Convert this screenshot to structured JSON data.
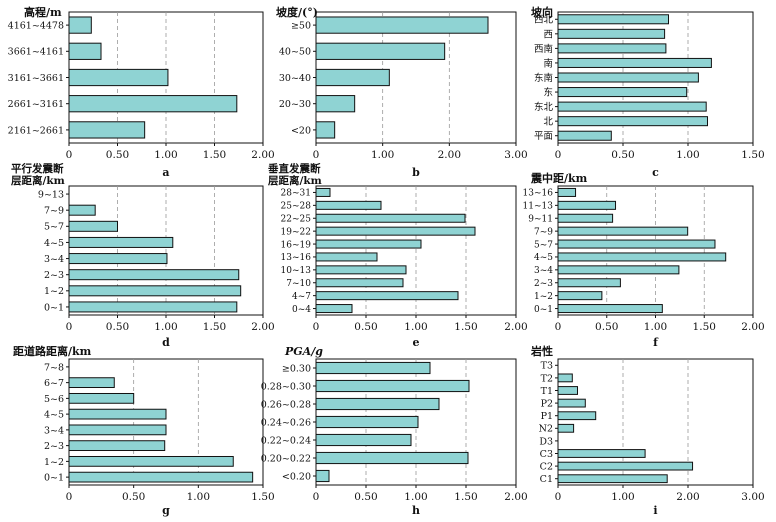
{
  "chart_data": [
    {
      "panel": "a",
      "type": "bar",
      "orientation": "horizontal",
      "title": "高程/m",
      "categories": [
        "4161~4478",
        "3661~4161",
        "3161~3661",
        "2661~3161",
        "2161~2661"
      ],
      "values": [
        0.23,
        0.33,
        1.02,
        1.73,
        0.78
      ],
      "xlim": [
        0,
        2.0
      ],
      "xticks": [
        "0",
        "0.50",
        "1.00",
        "1.50",
        "2.00"
      ],
      "grid": true
    },
    {
      "panel": "b",
      "type": "bar",
      "orientation": "horizontal",
      "title": "坡度/(°)",
      "categories": [
        "≥50",
        "40~50",
        "30~40",
        "20~30",
        "<20"
      ],
      "values": [
        2.58,
        1.93,
        1.1,
        0.58,
        0.28
      ],
      "xlim": [
        0,
        3.0
      ],
      "xticks": [
        "0",
        "1.00",
        "2.00",
        "3.00"
      ],
      "grid": true
    },
    {
      "panel": "c",
      "type": "bar",
      "orientation": "horizontal",
      "title": "坡向",
      "categories": [
        "西北",
        "西",
        "西南",
        "南",
        "东南",
        "东",
        "东北",
        "北",
        "平面"
      ],
      "values": [
        0.85,
        0.82,
        0.83,
        1.18,
        1.08,
        0.99,
        1.14,
        1.15,
        0.41
      ],
      "xlim": [
        0,
        1.5
      ],
      "xticks": [
        "0",
        "0.50",
        "1.00",
        "1.50"
      ],
      "grid": true
    },
    {
      "panel": "d",
      "type": "bar",
      "orientation": "horizontal",
      "title": "平行发震断层距离/km",
      "categories": [
        "9~13",
        "7~9",
        "5~7",
        "4~5",
        "3~4",
        "2~3",
        "1~2",
        "0~1"
      ],
      "values": [
        0,
        0.27,
        0.5,
        1.07,
        1.01,
        1.75,
        1.77,
        1.73
      ],
      "xlim": [
        0,
        2.0
      ],
      "xticks": [
        "0",
        "0.50",
        "1.00",
        "1.50",
        "2.00"
      ],
      "grid": true
    },
    {
      "panel": "e",
      "type": "bar",
      "orientation": "horizontal",
      "title": "垂直发震断层距离/km",
      "categories": [
        "28~31",
        "25~28",
        "22~25",
        "19~22",
        "16~19",
        "13~16",
        "10~13",
        "7~10",
        "4~7",
        "0~4"
      ],
      "values": [
        0.14,
        0.65,
        1.49,
        1.59,
        1.05,
        0.61,
        0.9,
        0.87,
        1.42,
        0.36
      ],
      "xlim": [
        0,
        2.0
      ],
      "xticks": [
        "0",
        "0.50",
        "1.00",
        "1.50",
        "2.00"
      ],
      "grid": true
    },
    {
      "panel": "f",
      "type": "bar",
      "orientation": "horizontal",
      "title": "震中距/km",
      "categories": [
        "13~16",
        "11~13",
        "9~11",
        "7~9",
        "5~7",
        "4~5",
        "3~4",
        "2~3",
        "1~2",
        "0~1"
      ],
      "values": [
        0.18,
        0.59,
        0.56,
        1.33,
        1.61,
        1.72,
        1.24,
        0.64,
        0.45,
        1.07
      ],
      "xlim": [
        0,
        2.0
      ],
      "xticks": [
        "0",
        "0.50",
        "1.00",
        "1.50",
        "2.00"
      ],
      "grid": true
    },
    {
      "panel": "g",
      "type": "bar",
      "orientation": "horizontal",
      "title": "距道路距离/km",
      "categories": [
        "7~8",
        "6~7",
        "5~6",
        "4~5",
        "3~4",
        "2~3",
        "1~2",
        "0~1"
      ],
      "values": [
        0,
        0.35,
        0.5,
        0.75,
        0.75,
        0.74,
        1.27,
        1.42
      ],
      "xlim": [
        0,
        1.5
      ],
      "xticks": [
        "0",
        "0.50",
        "1.00",
        "1.50"
      ],
      "grid": true
    },
    {
      "panel": "h",
      "type": "bar",
      "orientation": "horizontal",
      "title": "PGA/g",
      "categories": [
        "≥0.30",
        "0.28~0.30",
        "0.26~0.28",
        "0.24~0.26",
        "0.22~0.24",
        "0.20~0.22",
        "<0.20"
      ],
      "values": [
        1.14,
        1.53,
        1.23,
        1.02,
        0.95,
        1.52,
        0.13
      ],
      "xlim": [
        0,
        2.0
      ],
      "xticks": [
        "0",
        "0.50",
        "1.00",
        "1.50",
        "2.00"
      ],
      "grid": true
    },
    {
      "panel": "i",
      "type": "bar",
      "orientation": "horizontal",
      "title": "岩性",
      "categories": [
        "T3",
        "T2",
        "T1",
        "P2",
        "P1",
        "N2",
        "D3",
        "C3",
        "C2",
        "C1"
      ],
      "values": [
        0,
        0.22,
        0.3,
        0.42,
        0.58,
        0.24,
        0,
        1.34,
        2.07,
        1.68
      ],
      "xlim": [
        0,
        3.0
      ],
      "xticks": [
        "0",
        "1.00",
        "2.00",
        "3.00"
      ],
      "grid": true
    }
  ],
  "style": {
    "bar_fill": "#8fd3d3",
    "bar_stroke": "#111111",
    "grid_color": "#9a9a9a",
    "axis_color": "#111111"
  }
}
